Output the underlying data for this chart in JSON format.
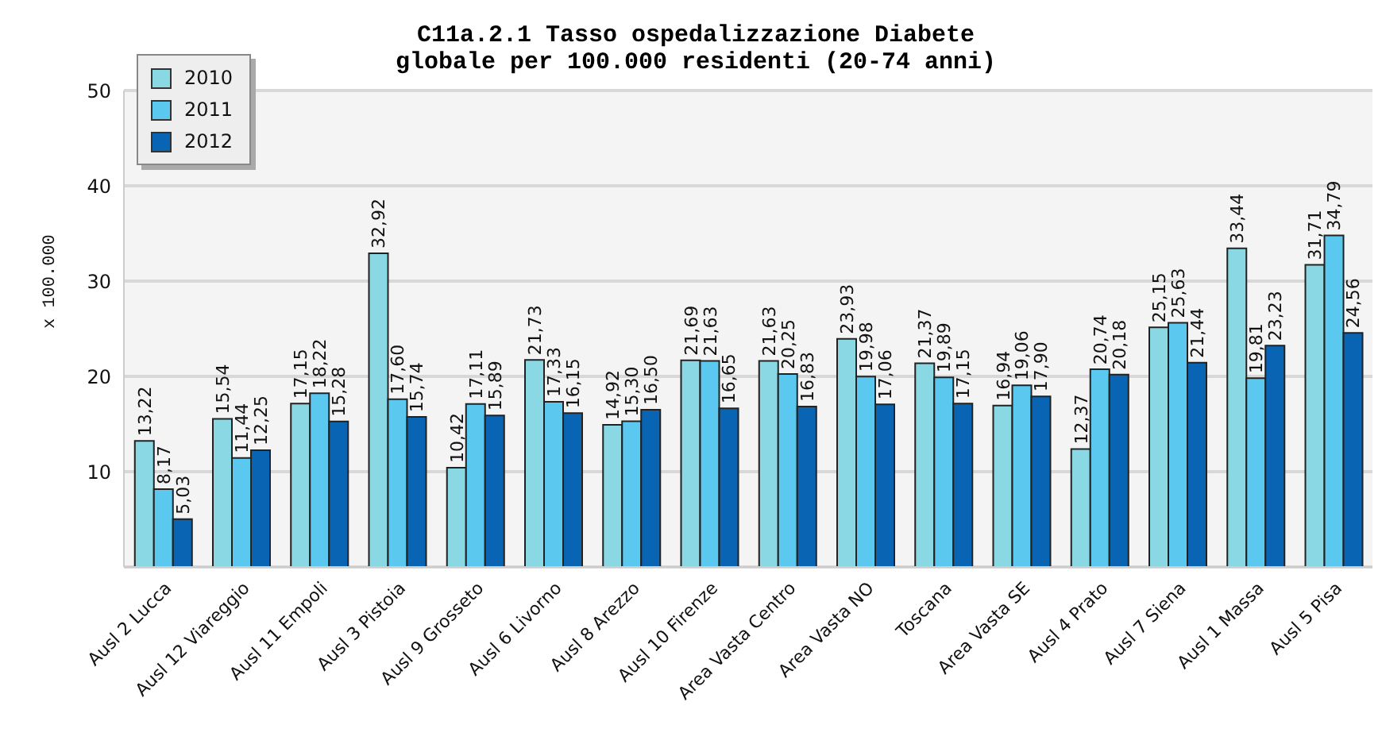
{
  "chart_data": {
    "type": "bar",
    "title": "C11a.2.1 Tasso ospedalizzazione Diabete\nglobale per 100.000 residenti (20-74 anni)",
    "ylabel": "x 100.000",
    "categories": [
      "Ausl 2 Lucca",
      "Ausl 12 Viareggio",
      "Ausl 11 Empoli",
      "Ausl 3 Pistoia",
      "Ausl 9 Grosseto",
      "Ausl 6 Livorno",
      "Ausl 8 Arezzo",
      "Ausl 10 Firenze",
      "Area Vasta Centro",
      "Area Vasta NO",
      "Toscana",
      "Area Vasta SE",
      "Ausl 4 Prato",
      "Ausl 7 Siena",
      "Ausl 1 Massa",
      "Ausl 5 Pisa"
    ],
    "series": [
      {
        "name": "2010",
        "color": "#8ad8e4",
        "values": [
          13.22,
          15.54,
          17.15,
          32.92,
          10.42,
          21.73,
          14.92,
          21.69,
          21.63,
          23.93,
          21.37,
          16.94,
          12.37,
          25.15,
          33.44,
          31.71
        ],
        "value_labels": [
          "13,22",
          "15,54",
          "17,15",
          "32,92",
          "10,42",
          "21,73",
          "14,92",
          "21,69",
          "21,63",
          "23,93",
          "21,37",
          "16,94",
          "12,37",
          "25,15",
          "33,44",
          "31,71"
        ]
      },
      {
        "name": "2011",
        "color": "#5bc8f0",
        "values": [
          8.17,
          11.44,
          18.22,
          17.6,
          17.11,
          17.33,
          15.3,
          21.63,
          20.25,
          19.98,
          19.89,
          19.06,
          20.74,
          25.63,
          19.81,
          34.79
        ],
        "value_labels": [
          "8,17",
          "11,44",
          "18,22",
          "17,60",
          "17,11",
          "17,33",
          "15,30",
          "21,63",
          "20,25",
          "19,98",
          "19,89",
          "19,06",
          "20,74",
          "25,63",
          "19,81",
          "34,79"
        ]
      },
      {
        "name": "2012",
        "color": "#0a64b4",
        "values": [
          5.03,
          12.25,
          15.28,
          15.74,
          15.89,
          16.15,
          16.5,
          16.65,
          16.83,
          17.06,
          17.15,
          17.9,
          20.18,
          21.44,
          23.23,
          24.56
        ],
        "value_labels": [
          "5,03",
          "12,25",
          "15,28",
          "15,74",
          "15,89",
          "16,15",
          "16,50",
          "16,65",
          "16,83",
          "17,06",
          "17,15",
          "17,90",
          "20,18",
          "21,44",
          "23,23",
          "24,56"
        ]
      }
    ],
    "ylim": [
      0,
      50
    ],
    "yticks": [
      10,
      20,
      30,
      40,
      50
    ],
    "grid": "y",
    "legend": "top left"
  }
}
